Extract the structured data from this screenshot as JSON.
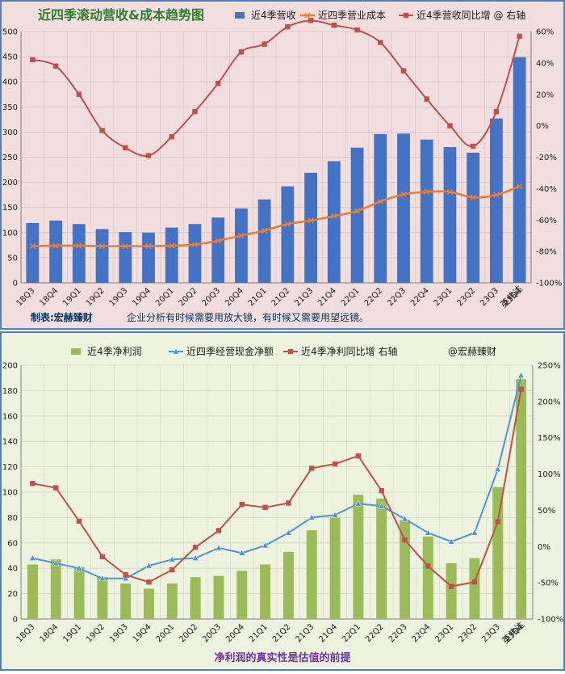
{
  "chart_data": [
    {
      "type": "bar",
      "title": "近四季滚动营收&成本趋势图",
      "legend": [
        {
          "label": "近4季营收",
          "color": "#4472C4",
          "kind": "bar"
        },
        {
          "label": "近四季营业成本",
          "color": "#ED7D31",
          "kind": "line-x"
        },
        {
          "label": "近4季营收同比增 @ 右轴",
          "color": "#C0504D",
          "kind": "line-square"
        }
      ],
      "categories": [
        "18Q3",
        "18Q4",
        "19Q1",
        "19Q2",
        "19Q3",
        "19Q4",
        "20Q1",
        "20Q2",
        "20Q3",
        "20Q4",
        "21Q1",
        "21Q2",
        "21Q3",
        "21Q4",
        "22Q1",
        "22Q2",
        "22Q3",
        "22Q4",
        "23Q1",
        "23Q2",
        "23Q3",
        "23Q4"
      ],
      "series": [
        {
          "name": "近4季营收",
          "axis": "left",
          "color": "#4472C4",
          "values": [
            119,
            124,
            117,
            107,
            101,
            100,
            110,
            117,
            130,
            148,
            166,
            192,
            219,
            242,
            269,
            296,
            297,
            285,
            270,
            259,
            327,
            449
          ]
        },
        {
          "name": "近四季营业成本",
          "axis": "left",
          "color": "#ED7D31",
          "values": [
            73,
            74,
            74,
            73,
            73,
            73,
            74,
            76,
            84,
            94,
            104,
            117,
            124,
            133,
            143,
            162,
            176,
            181,
            181,
            170,
            175,
            192
          ]
        },
        {
          "name": "近4季营收同比增 @ 右轴",
          "axis": "right",
          "color": "#C0504D",
          "values": [
            42,
            38,
            20,
            -3,
            -14,
            -19,
            -7,
            9,
            27,
            47,
            52,
            63,
            67,
            64,
            61,
            53,
            35,
            17,
            0,
            -13,
            9,
            57
          ]
        }
      ],
      "ylim_left": [
        0,
        500
      ],
      "yticks_left": [
        "0",
        "50",
        "100",
        "150",
        "200",
        "250",
        "300",
        "350",
        "400",
        "450",
        "500"
      ],
      "ylim_right": [
        -100,
        60
      ],
      "yticks_right": [
        "-100%",
        "-80%",
        "-60%",
        "-40%",
        "-20%",
        "0%",
        "20%",
        "40%",
        "60%"
      ],
      "extra_label": "英伟达",
      "footer_left": "制表:宏赫臻财",
      "footer_right": "企业分析有时候需要用放大镜，有时候又需要用望远镜。",
      "grid": true,
      "colors": {
        "background": "#F2DEDE",
        "border": "#4F81BD",
        "grid": "#D4C4C4",
        "text": "#00355F",
        "title": "#2E7D32"
      }
    },
    {
      "type": "bar",
      "title": "",
      "legend": [
        {
          "label": "近4季净利润",
          "color": "#9BBB59",
          "kind": "bar"
        },
        {
          "label": "近四季经营现金净额",
          "color": "#4F94D4",
          "kind": "line-triangle"
        },
        {
          "label": "近4季净利同比增 右轴",
          "color": "#C0504D",
          "kind": "line-square"
        },
        {
          "label": "@宏赫臻财",
          "color": "#1A1A1A",
          "kind": "text"
        }
      ],
      "categories": [
        "18Q3",
        "18Q4",
        "19Q1",
        "19Q2",
        "19Q3",
        "19Q4",
        "20Q1",
        "20Q2",
        "20Q3",
        "20Q4",
        "21Q1",
        "21Q2",
        "21Q3",
        "21Q4",
        "22Q1",
        "22Q2",
        "22Q3",
        "22Q4",
        "23Q1",
        "23Q2",
        "23Q3",
        "23Q4"
      ],
      "series": [
        {
          "name": "近4季净利润",
          "axis": "left",
          "color": "#9BBB59",
          "values": [
            43,
            47,
            41,
            33,
            28,
            24,
            28,
            33,
            34,
            38,
            43,
            53,
            70,
            80,
            98,
            95,
            78,
            65,
            44,
            48,
            104,
            189
          ]
        },
        {
          "name": "近四季经营现金净额",
          "axis": "left",
          "color": "#4F94D4",
          "values": [
            48,
            44,
            40,
            32,
            32,
            42,
            47,
            48,
            56,
            52,
            58,
            68,
            80,
            82,
            91,
            89,
            79,
            68,
            61,
            68,
            118,
            192
          ]
        },
        {
          "name": "近4季净利同比增 右轴",
          "axis": "right",
          "color": "#C0504D",
          "values": [
            87,
            81,
            35,
            -14,
            -39,
            -49,
            -32,
            -1,
            22,
            58,
            54,
            60,
            108,
            114,
            125,
            77,
            9,
            -27,
            -55,
            -49,
            34,
            217
          ]
        }
      ],
      "ylim_left": [
        0,
        200
      ],
      "yticks_left": [
        "0",
        "20",
        "40",
        "60",
        "80",
        "100",
        "120",
        "140",
        "160",
        "180",
        "200"
      ],
      "ylim_right": [
        -100,
        250
      ],
      "yticks_right": [
        "-100%",
        "-50%",
        "0%",
        "50%",
        "100%",
        "150%",
        "200%",
        "250%"
      ],
      "extra_label": "英伟达",
      "footer_center": "净利润的真实性是估值的前提",
      "grid": true,
      "colors": {
        "background": "#EEF3DF",
        "border": "#4F81BD",
        "grid": "#D2D8C2",
        "text": "#00355F",
        "footer": "#7030A0"
      }
    }
  ]
}
